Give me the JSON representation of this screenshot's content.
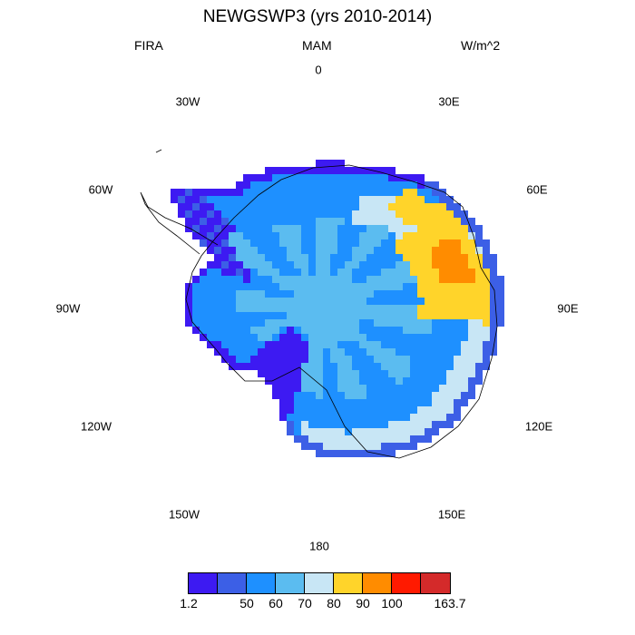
{
  "title": "NEWGSWP3 (yrs 2010-2014)",
  "left_label": "FIRA",
  "center_label": "MAM",
  "right_label": "W/m^2",
  "longitude_labels": {
    "lon_0": "0",
    "lon_30e": "30E",
    "lon_60e": "60E",
    "lon_90e": "90E",
    "lon_120e": "120E",
    "lon_150e": "150E",
    "lon_180": "180",
    "lon_150w": "150W",
    "lon_120w": "120W",
    "lon_90w": "90W",
    "lon_60w": "60W",
    "lon_30w": "30W"
  },
  "colorbar": {
    "colors": [
      "#3d1af2",
      "#3c5fe6",
      "#1e90ff",
      "#5bbcf0",
      "#c8e6f5",
      "#ffd42a",
      "#ff8c00",
      "#ff1a00",
      "#d42a2a"
    ],
    "labels": {
      "min": "1.2",
      "l50": "50",
      "l60": "60",
      "l70": "70",
      "l80": "80",
      "l90": "90",
      "l100": "100",
      "max": "163.7"
    }
  }
}
